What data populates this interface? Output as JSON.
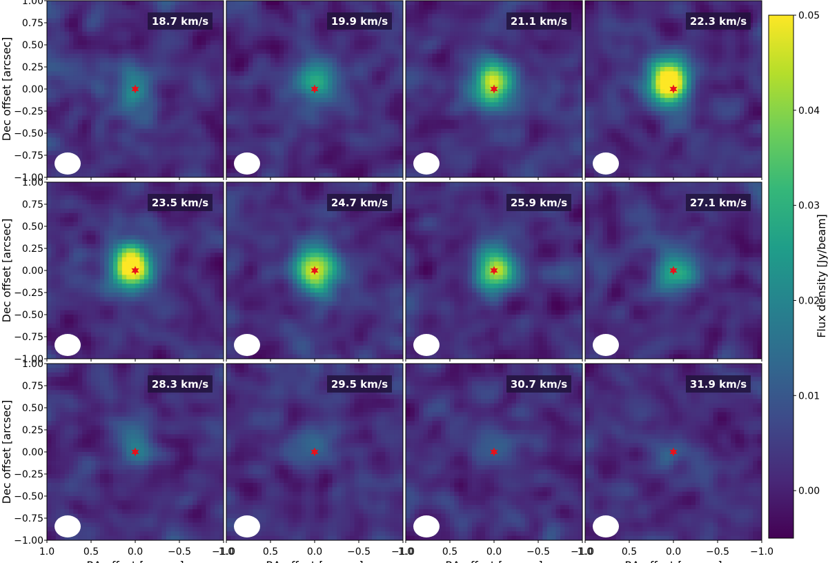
{
  "chart_data": {
    "type": "heatmap",
    "grid": {
      "rows": 3,
      "cols": 4
    },
    "xlabel": "RA offset [arcsec]",
    "ylabel": "Dec offset [arcsec]",
    "xlim": [
      1.0,
      -1.0
    ],
    "ylim": [
      -1.0,
      1.0
    ],
    "x_ticks": [
      1.0,
      0.5,
      0.0,
      -0.5,
      -1.0
    ],
    "x_tick_labels": [
      "1.0",
      "0.5",
      "0.0",
      "−0.5",
      "−1.0"
    ],
    "y_ticks": [
      1.0,
      0.75,
      0.5,
      0.25,
      0.0,
      -0.25,
      -0.5,
      -0.75,
      -1.0
    ],
    "y_tick_labels": [
      "1.00",
      "0.75",
      "0.50",
      "0.25",
      "0.00",
      "−0.25",
      "−0.50",
      "−0.75",
      "−1.00"
    ],
    "panels": [
      {
        "label": "18.7 km/s",
        "peak_flux": 0.02,
        "source_offset": [
          0.0,
          0.0
        ]
      },
      {
        "label": "19.9 km/s",
        "peak_flux": 0.027,
        "source_offset": [
          0.0,
          0.05
        ]
      },
      {
        "label": "21.1 km/s",
        "peak_flux": 0.045,
        "source_offset": [
          0.02,
          0.05
        ]
      },
      {
        "label": "22.3 km/s",
        "peak_flux": 0.06,
        "source_offset": [
          0.05,
          0.07
        ]
      },
      {
        "label": "23.5 km/s",
        "peak_flux": 0.06,
        "source_offset": [
          0.05,
          0.05
        ]
      },
      {
        "label": "24.7 km/s",
        "peak_flux": 0.05,
        "source_offset": [
          0.0,
          0.02
        ]
      },
      {
        "label": "25.9 km/s",
        "peak_flux": 0.04,
        "source_offset": [
          0.0,
          0.0
        ]
      },
      {
        "label": "27.1 km/s",
        "peak_flux": 0.026,
        "source_offset": [
          -0.02,
          0.0
        ]
      },
      {
        "label": "28.3 km/s",
        "peak_flux": 0.018,
        "source_offset": [
          0.0,
          0.05
        ]
      },
      {
        "label": "29.5 km/s",
        "peak_flux": 0.01,
        "source_offset": [
          0.0,
          0.0
        ]
      },
      {
        "label": "30.7 km/s",
        "peak_flux": 0.008,
        "source_offset": [
          0.0,
          0.0
        ]
      },
      {
        "label": "31.9 km/s",
        "peak_flux": 0.007,
        "source_offset": [
          0.0,
          0.0
        ]
      }
    ],
    "star_position": [
      0.0,
      0.0
    ],
    "colorbar": {
      "label": "Flux density [Jy/beam]",
      "colormap": "viridis",
      "range": [
        -0.005,
        0.05
      ],
      "ticks": [
        0.0,
        0.01,
        0.02,
        0.03,
        0.04,
        0.05
      ],
      "tick_labels": [
        "0.00",
        "0.01",
        "0.02",
        "0.03",
        "0.04",
        "0.05"
      ]
    },
    "colors": {
      "star": "#e8111a",
      "beam": "#ffffff",
      "viridis": [
        "#440154",
        "#482878",
        "#3e4989",
        "#31688e",
        "#26828e",
        "#1f9e89",
        "#35b779",
        "#6ece58",
        "#b5de2b",
        "#fde725"
      ]
    }
  }
}
